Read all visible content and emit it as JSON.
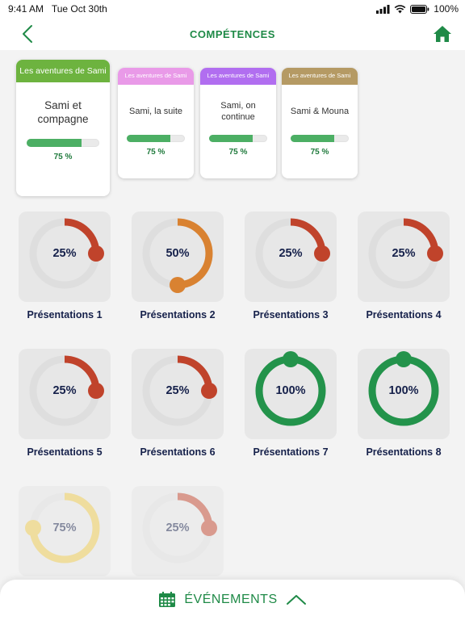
{
  "status": {
    "time": "9:41 AM",
    "date": "Tue Oct 30th",
    "battery": "100%"
  },
  "nav": {
    "title": "COMPÉTENCES",
    "back_icon": "chevron-left-icon",
    "home_icon": "home-icon"
  },
  "books": [
    {
      "series": "Les aventures de Sami",
      "title": "Sami et compagne",
      "percent_label": "75 %",
      "progress": 0.75,
      "header_color": "#6db33f"
    },
    {
      "series": "Les aventures de Sami",
      "title": "Sami, la suite",
      "percent_label": "75 %",
      "progress": 0.75,
      "header_color": "#e99ae8"
    },
    {
      "series": "Les aventures de Sami",
      "title": "Sami, on continue",
      "percent_label": "75 %",
      "progress": 0.75,
      "header_color": "#b16ef0"
    },
    {
      "series": "Les aventures de Sami",
      "title": "Sami & Mouna",
      "percent_label": "75 %",
      "progress": 0.75,
      "header_color": "#b59a64"
    }
  ],
  "skills": [
    {
      "label": "Présentations 1",
      "percent_label": "25%",
      "progress": 0.25,
      "color": "#c0432b"
    },
    {
      "label": "Présentations 2",
      "percent_label": "50%",
      "progress": 0.5,
      "color": "#d98231"
    },
    {
      "label": "Présentations 3",
      "percent_label": "25%",
      "progress": 0.25,
      "color": "#c0432b"
    },
    {
      "label": "Présentations 4",
      "percent_label": "25%",
      "progress": 0.25,
      "color": "#c0432b"
    },
    {
      "label": "Présentations 5",
      "percent_label": "25%",
      "progress": 0.25,
      "color": "#c0432b"
    },
    {
      "label": "Présentations 6",
      "percent_label": "25%",
      "progress": 0.25,
      "color": "#c0432b"
    },
    {
      "label": "Présentations 7",
      "percent_label": "100%",
      "progress": 1.0,
      "color": "#23934b"
    },
    {
      "label": "Présentations 8",
      "percent_label": "100%",
      "progress": 1.0,
      "color": "#23934b"
    },
    {
      "label": "",
      "percent_label": "75%",
      "progress": 0.75,
      "color": "#ecc94b",
      "faded": true
    },
    {
      "label": "",
      "percent_label": "25%",
      "progress": 0.25,
      "color": "#c0432b",
      "faded": true
    }
  ],
  "events": {
    "label": "ÉVÉNEMENTS",
    "icon": "calendar-icon",
    "toggle_icon": "chevron-up-icon"
  },
  "colors": {
    "accent": "#1f8a47",
    "progress_green": "#4caf64",
    "tile_bg": "#e7e7e7",
    "ring_track": "#dedede"
  }
}
